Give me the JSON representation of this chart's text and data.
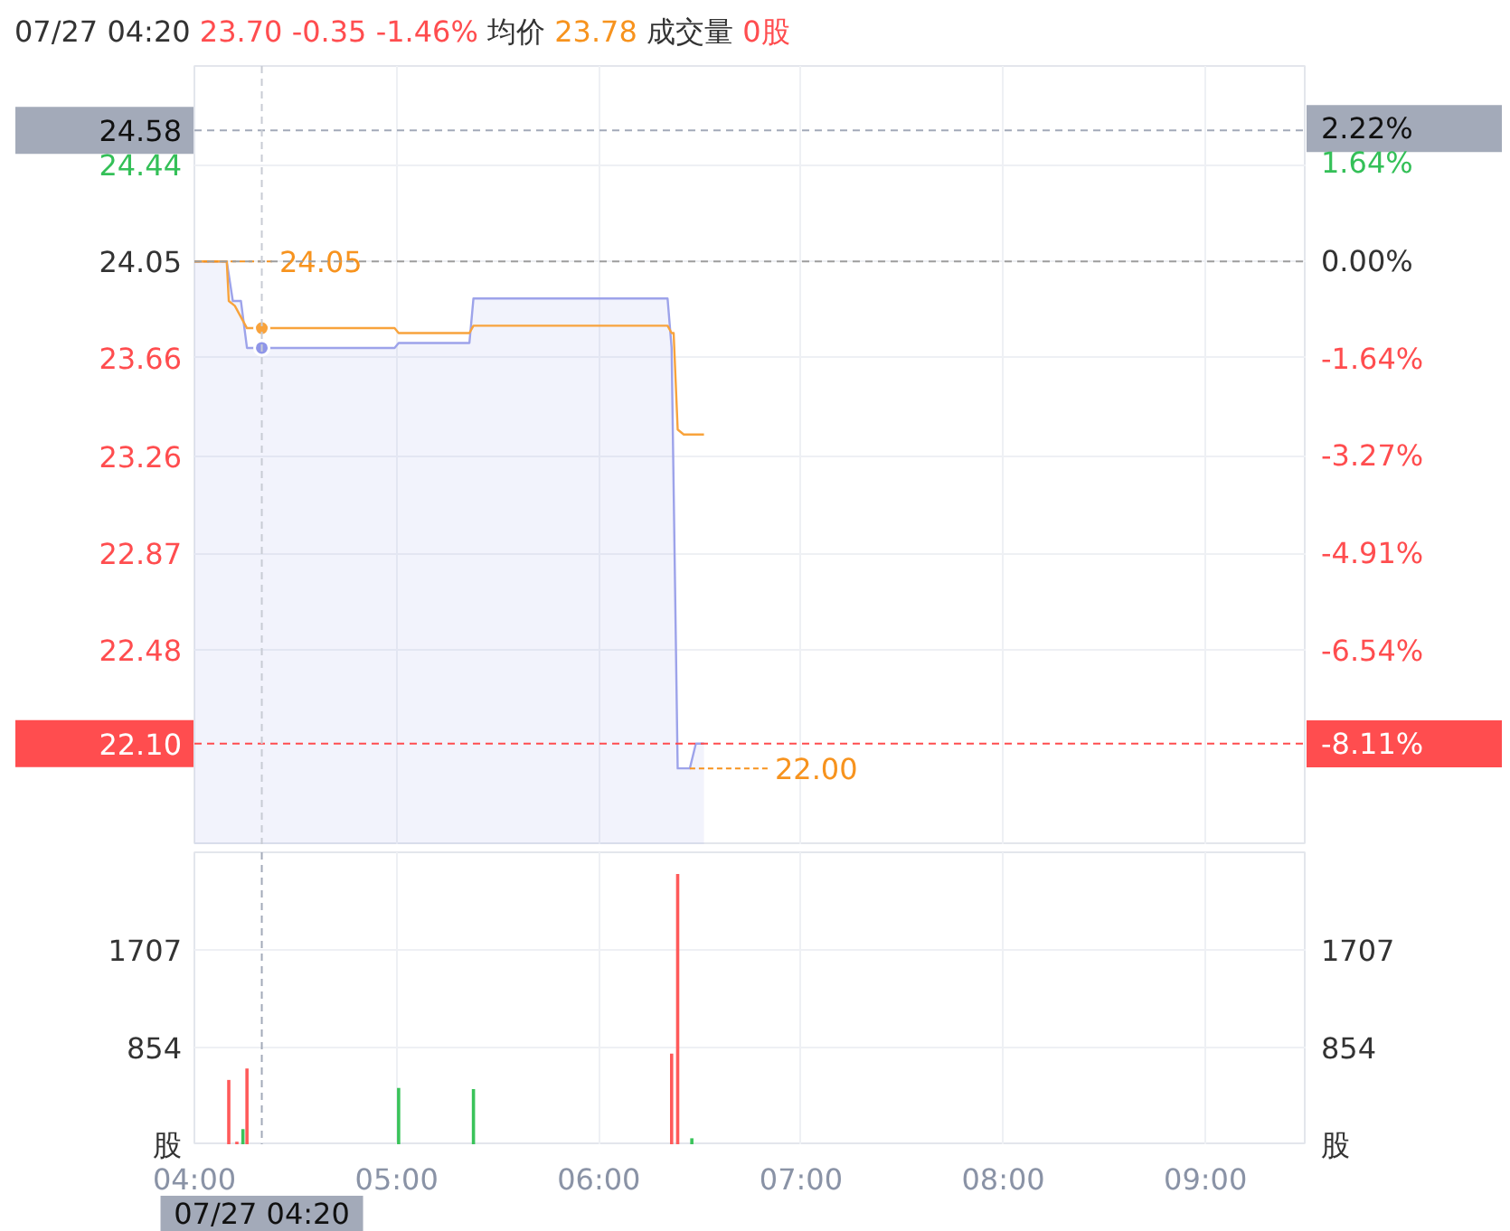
{
  "chart_data": [
    {
      "type": "line",
      "annotations": [
        "07/27 04:20",
        "23.70",
        "-0.35",
        "-1.46%",
        "均价",
        "23.78",
        "成交量",
        "0股",
        {
          "text": "24.05",
          "x": 4.0,
          "y": 24.05
        },
        {
          "text": "22.00",
          "x": 6.45,
          "y": 22.0
        }
      ],
      "xlim": [
        4,
        9.5
      ],
      "xticks": [
        {
          "value": 4,
          "label": null
        },
        {
          "value": 5,
          "label": null
        },
        {
          "value": 6,
          "label": null
        },
        {
          "value": 7,
          "label": null
        },
        {
          "value": 8,
          "label": null
        },
        {
          "value": 9,
          "label": null
        }
      ],
      "ylim": [
        21.69,
        24.84
      ],
      "yticks": [
        24.44,
        24.05,
        23.66,
        23.26,
        22.87,
        22.48
      ],
      "y2lim": [
        -9.81,
        3.27
      ],
      "y2ticks": [
        {
          "value": 2.22,
          "label": "2.22%"
        },
        {
          "value": 1.64,
          "label": "1.64%"
        },
        {
          "value": 0,
          "label": "0.00%"
        },
        {
          "value": -1.64,
          "label": "-1.64%"
        },
        {
          "value": -3.27,
          "label": "-3.27%"
        },
        {
          "value": -4.91,
          "label": "-4.91%"
        },
        {
          "value": -6.54,
          "label": "-6.54%"
        },
        {
          "value": -8.11,
          "label": "-8.11%"
        }
      ],
      "tick_labels": "y",
      "grid": true,
      "ref_lines": [
        {
          "axis": "y",
          "value": 24.05,
          "color": "#9e9e9e",
          "line_style": "dashed"
        },
        {
          "axis": "y",
          "value": 22.1,
          "label": "22.10",
          "color": "#ff4d4f",
          "line_style": "dashed"
        },
        {
          "axis": "y",
          "value": 24.58,
          "label": "24.58",
          "color": "#a3aab9",
          "line_style": "dashed"
        },
        {
          "axis": "x",
          "value": 4.3333,
          "color": "#c8ccd4",
          "line_style": "dashed"
        }
      ],
      "series": [
        {
          "type": "area",
          "color": "#9da3ea",
          "x": [
            4.0,
            4.16,
            4.19,
            4.23,
            4.26,
            4.99,
            5.01,
            5.36,
            5.38,
            6.34,
            6.36,
            6.39,
            6.45,
            6.48,
            6.52
          ],
          "values": [
            24.05,
            24.05,
            23.89,
            23.89,
            23.7,
            23.7,
            23.72,
            23.72,
            23.9,
            23.9,
            23.7,
            22.0,
            22.0,
            22.1,
            22.1
          ]
        },
        {
          "type": "line",
          "color": "#f8a33c",
          "x": [
            4.0,
            4.16,
            4.17,
            4.2,
            4.26,
            4.99,
            5.01,
            5.36,
            5.38,
            6.34,
            6.36,
            6.37,
            6.39,
            6.42,
            6.52
          ],
          "values": [
            24.05,
            24.05,
            23.89,
            23.87,
            23.78,
            23.78,
            23.76,
            23.76,
            23.79,
            23.79,
            23.76,
            23.76,
            23.37,
            23.35,
            23.35
          ]
        },
        {
          "type": "scatter",
          "marker": "circle",
          "x": [
            4.3333,
            4.3333
          ],
          "values": [
            23.7,
            23.78
          ],
          "colors": [
            "#8f96e8",
            "#f8a33c"
          ]
        }
      ]
    },
    {
      "type": "bar",
      "x": [
        4.17,
        4.21,
        4.24,
        4.26,
        5.01,
        5.38,
        6.36,
        6.39,
        6.46
      ],
      "values": [
        570,
        30,
        140,
        670,
        500,
        490,
        800,
        2370,
        60
      ],
      "colors": [
        "#ff5a5a",
        "#ff5a5a",
        "#3ac35a",
        "#ff5a5a",
        "#3ac35a",
        "#3ac35a",
        "#ff5a5a",
        "#ff5a5a",
        "#3ac35a"
      ],
      "xlim": [
        4,
        9.5
      ],
      "xticks": [
        {
          "value": 4,
          "label": "04:00"
        },
        {
          "value": 5,
          "label": "05:00"
        },
        {
          "value": 6,
          "label": "06:00"
        },
        {
          "value": 7,
          "label": "07:00"
        },
        {
          "value": 8,
          "label": "08:00"
        },
        {
          "value": 9,
          "label": "09:00"
        }
      ],
      "ylim": [
        0,
        2560
      ],
      "yticks": [
        {
          "value": 0,
          "label": "股"
        },
        854,
        1707
      ],
      "y2lim": [
        0,
        2560
      ],
      "y2ticks": [
        {
          "value": 0,
          "label": "股"
        },
        854,
        1707
      ],
      "grid": true,
      "ref_lines": [
        {
          "axis": "x",
          "value": 4.3333,
          "label": "07/27 04:20",
          "color": "#a3aab9",
          "line_style": "dashed"
        }
      ]
    }
  ]
}
